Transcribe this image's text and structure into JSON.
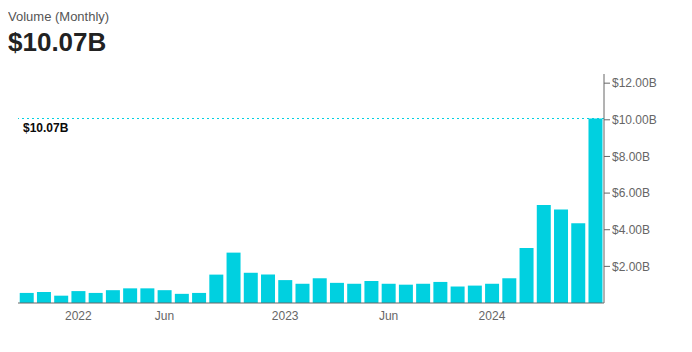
{
  "chart_data": {
    "type": "bar",
    "title": "$10.07B",
    "subtitle": "Volume (Monthly)",
    "color": "#00d0e0",
    "categories": [
      null,
      null,
      null,
      "2022",
      null,
      null,
      null,
      null,
      "Jun",
      null,
      null,
      null,
      null,
      null,
      null,
      "2023",
      null,
      null,
      null,
      null,
      null,
      "Jun",
      null,
      null,
      null,
      null,
      null,
      "2024",
      null,
      null,
      null,
      null,
      null,
      null
    ],
    "values": [
      0.55,
      0.6,
      0.4,
      0.65,
      0.55,
      0.7,
      0.8,
      0.8,
      0.7,
      0.5,
      0.55,
      1.55,
      2.75,
      1.65,
      1.55,
      1.25,
      1.05,
      1.35,
      1.1,
      1.05,
      1.2,
      1.05,
      1.0,
      1.05,
      1.15,
      0.9,
      0.95,
      1.05,
      1.35,
      3.0,
      5.35,
      5.1,
      4.35,
      10.07
    ],
    "ylim": [
      0,
      12.5
    ],
    "yticks": [
      {
        "value": 2,
        "label": "$2.00B"
      },
      {
        "value": 4,
        "label": "$4.00B"
      },
      {
        "value": 6,
        "label": "$6.00B"
      },
      {
        "value": 8,
        "label": "$8.00B"
      },
      {
        "value": 10,
        "label": "$10.00B"
      },
      {
        "value": 12,
        "label": "$12.00B"
      }
    ],
    "annotations": [
      {
        "y": 10.07,
        "label": "$10.07B"
      }
    ],
    "grid": false
  }
}
